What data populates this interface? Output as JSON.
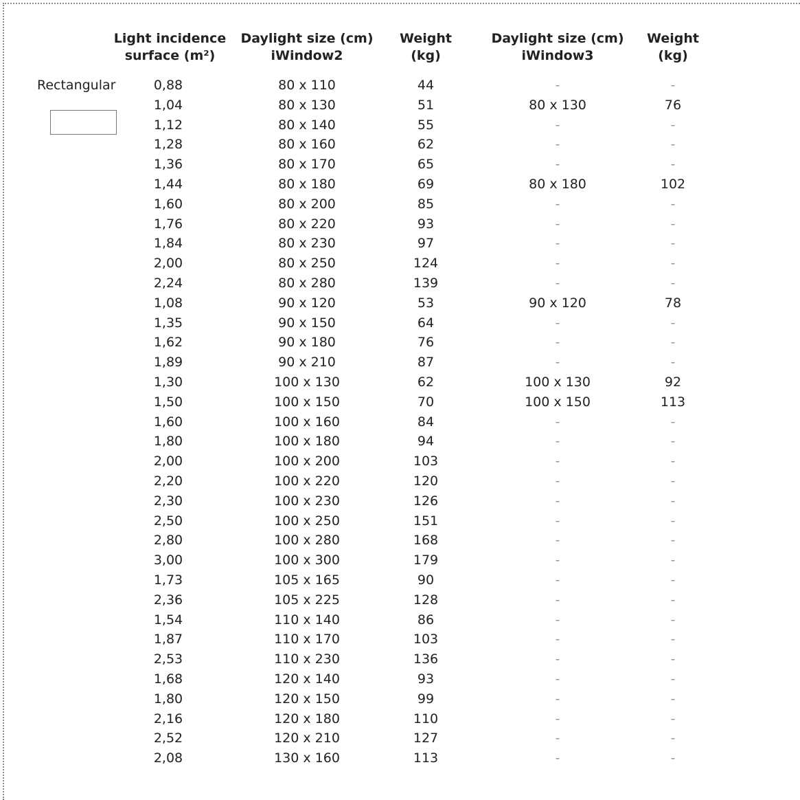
{
  "headers": [
    {
      "line1": "Light incidence",
      "line2": "surface (m²)"
    },
    {
      "line1": "Daylight size (cm)",
      "line2": "iWindow2"
    },
    {
      "line1": "Weight",
      "line2": "(kg)"
    },
    {
      "line1": "Daylight size (cm)",
      "line2": "iWindow3"
    },
    {
      "line1": "Weight",
      "line2": "(kg)"
    }
  ],
  "shape_label": "Rectangular",
  "shape_icon": "rectangle-outline",
  "rows": [
    {
      "surface": "0,88",
      "size2": "80 x 110",
      "weight2": "44",
      "size3": "-",
      "weight3": "-"
    },
    {
      "surface": "1,04",
      "size2": "80 x 130",
      "weight2": "51",
      "size3": "80 x 130",
      "weight3": "76"
    },
    {
      "surface": "1,12",
      "size2": "80 x 140",
      "weight2": "55",
      "size3": "-",
      "weight3": "-"
    },
    {
      "surface": "1,28",
      "size2": "80 x 160",
      "weight2": "62",
      "size3": "-",
      "weight3": "-"
    },
    {
      "surface": "1,36",
      "size2": "80 x 170",
      "weight2": "65",
      "size3": "-",
      "weight3": "-"
    },
    {
      "surface": "1,44",
      "size2": "80 x 180",
      "weight2": "69",
      "size3": "80 x 180",
      "weight3": "102"
    },
    {
      "surface": "1,60",
      "size2": "80 x 200",
      "weight2": "85",
      "size3": "-",
      "weight3": "-"
    },
    {
      "surface": "1,76",
      "size2": "80 x 220",
      "weight2": "93",
      "size3": "-",
      "weight3": "-"
    },
    {
      "surface": "1,84",
      "size2": "80 x 230",
      "weight2": "97",
      "size3": "-",
      "weight3": "-"
    },
    {
      "surface": "2,00",
      "size2": "80 x 250",
      "weight2": "124",
      "size3": "-",
      "weight3": "-"
    },
    {
      "surface": "2,24",
      "size2": "80 x 280",
      "weight2": "139",
      "size3": "-",
      "weight3": "-"
    },
    {
      "surface": "1,08",
      "size2": "90 x 120",
      "weight2": "53",
      "size3": "90 x 120",
      "weight3": "78"
    },
    {
      "surface": "1,35",
      "size2": "90 x 150",
      "weight2": "64",
      "size3": "-",
      "weight3": "-"
    },
    {
      "surface": "1,62",
      "size2": "90 x 180",
      "weight2": "76",
      "size3": "-",
      "weight3": "-"
    },
    {
      "surface": "1,89",
      "size2": "90 x 210",
      "weight2": "87",
      "size3": "-",
      "weight3": "-"
    },
    {
      "surface": "1,30",
      "size2": "100 x 130",
      "weight2": "62",
      "size3": "100 x 130",
      "weight3": "92"
    },
    {
      "surface": "1,50",
      "size2": "100 x 150",
      "weight2": "70",
      "size3": "100 x 150",
      "weight3": "113"
    },
    {
      "surface": "1,60",
      "size2": "100 x 160",
      "weight2": "84",
      "size3": "-",
      "weight3": "-"
    },
    {
      "surface": "1,80",
      "size2": "100 x 180",
      "weight2": "94",
      "size3": "-",
      "weight3": "-"
    },
    {
      "surface": "2,00",
      "size2": "100 x 200",
      "weight2": "103",
      "size3": "-",
      "weight3": "-"
    },
    {
      "surface": "2,20",
      "size2": "100 x 220",
      "weight2": "120",
      "size3": "-",
      "weight3": "-"
    },
    {
      "surface": "2,30",
      "size2": "100 x 230",
      "weight2": "126",
      "size3": "-",
      "weight3": "-"
    },
    {
      "surface": "2,50",
      "size2": "100 x 250",
      "weight2": "151",
      "size3": "-",
      "weight3": "-"
    },
    {
      "surface": "2,80",
      "size2": "100 x 280",
      "weight2": "168",
      "size3": "-",
      "weight3": "-"
    },
    {
      "surface": "3,00",
      "size2": "100 x 300",
      "weight2": "179",
      "size3": "-",
      "weight3": "-"
    },
    {
      "surface": "1,73",
      "size2": "105 x 165",
      "weight2": "90",
      "size3": "-",
      "weight3": "-"
    },
    {
      "surface": "2,36",
      "size2": "105 x 225",
      "weight2": "128",
      "size3": "-",
      "weight3": "-"
    },
    {
      "surface": "1,54",
      "size2": "110 x 140",
      "weight2": "86",
      "size3": "-",
      "weight3": "-"
    },
    {
      "surface": "1,87",
      "size2": "110 x 170",
      "weight2": "103",
      "size3": "-",
      "weight3": "-"
    },
    {
      "surface": "2,53",
      "size2": "110 x 230",
      "weight2": "136",
      "size3": "-",
      "weight3": "-"
    },
    {
      "surface": "1,68",
      "size2": "120 x 140",
      "weight2": "93",
      "size3": "-",
      "weight3": "-"
    },
    {
      "surface": "1,80",
      "size2": "120 x 150",
      "weight2": "99",
      "size3": "-",
      "weight3": "-"
    },
    {
      "surface": "2,16",
      "size2": "120 x 180",
      "weight2": "110",
      "size3": "-",
      "weight3": "-"
    },
    {
      "surface": "2,52",
      "size2": "120 x 210",
      "weight2": "127",
      "size3": "-",
      "weight3": "-"
    },
    {
      "surface": "2,08",
      "size2": "130 x 160",
      "weight2": "113",
      "size3": "-",
      "weight3": "-"
    }
  ]
}
